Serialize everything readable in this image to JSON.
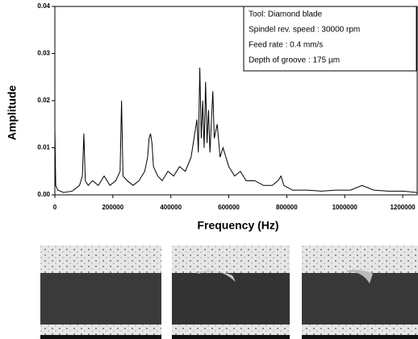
{
  "chart_data": {
    "type": "line",
    "x_label": "Frequency (Hz)",
    "y_label": "Amplitude",
    "annotations": [
      "Tool: Diamond blade",
      "Spindel rev. speed : 30000 rpm",
      "Feed rate : 0.4 mm/s",
      "Depth of groove : 175 µm"
    ],
    "xlim": [
      0,
      1250000
    ],
    "xticks": [
      0,
      200000,
      400000,
      600000,
      800000,
      1000000,
      1200000
    ],
    "ylim": [
      0,
      0.04
    ],
    "yticks": [
      {
        "value": 0,
        "label": "0.00"
      },
      {
        "value": 0.01,
        "label": "0.01"
      },
      {
        "value": 0.02,
        "label": "0.02"
      },
      {
        "value": 0.03,
        "label": "0.03"
      },
      {
        "value": 0.04,
        "label": "0.04"
      }
    ],
    "color": "#000000",
    "x": [
      0,
      3000,
      10000,
      30000,
      60000,
      85000,
      95000,
      100000,
      105000,
      115000,
      130000,
      150000,
      170000,
      190000,
      210000,
      225000,
      230000,
      235000,
      250000,
      270000,
      290000,
      310000,
      320000,
      325000,
      330000,
      335000,
      340000,
      355000,
      370000,
      390000,
      410000,
      430000,
      450000,
      470000,
      480000,
      490000,
      495000,
      500000,
      505000,
      510000,
      515000,
      520000,
      525000,
      530000,
      535000,
      545000,
      550000,
      560000,
      570000,
      580000,
      600000,
      620000,
      640000,
      660000,
      690000,
      720000,
      750000,
      770000,
      780000,
      790000,
      820000,
      870000,
      920000,
      970000,
      1020000,
      1060000,
      1100000,
      1150000,
      1200000,
      1250000
    ],
    "values": [
      0.014,
      0.002,
      0.001,
      0.0005,
      0.0008,
      0.002,
      0.004,
      0.013,
      0.003,
      0.002,
      0.003,
      0.002,
      0.004,
      0.002,
      0.003,
      0.005,
      0.02,
      0.004,
      0.003,
      0.002,
      0.003,
      0.005,
      0.008,
      0.012,
      0.013,
      0.011,
      0.006,
      0.004,
      0.003,
      0.005,
      0.004,
      0.006,
      0.005,
      0.008,
      0.012,
      0.016,
      0.009,
      0.027,
      0.012,
      0.02,
      0.01,
      0.024,
      0.011,
      0.018,
      0.009,
      0.022,
      0.012,
      0.015,
      0.008,
      0.01,
      0.006,
      0.004,
      0.005,
      0.003,
      0.003,
      0.002,
      0.002,
      0.003,
      0.004,
      0.002,
      0.001,
      0.001,
      0.0008,
      0.001,
      0.001,
      0.002,
      0.001,
      0.0008,
      0.0008,
      0.0005
    ]
  }
}
